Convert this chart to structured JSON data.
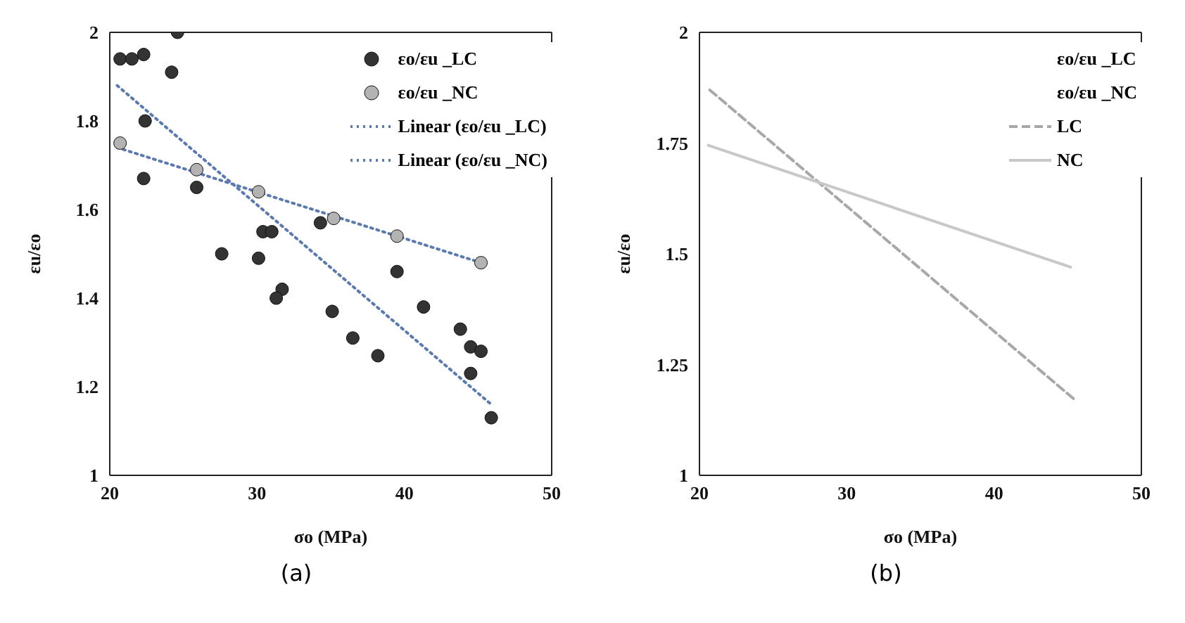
{
  "chart_data": [
    {
      "type": "scatter",
      "xlabel": "σo (MPa)",
      "ylabel": "εu/εo",
      "xlim": [
        20,
        50
      ],
      "xticks": [
        20,
        30,
        40,
        50
      ],
      "ylim": [
        1,
        2
      ],
      "yticks": [
        1,
        1.2,
        1.4,
        1.6,
        1.8,
        2
      ],
      "grid": false,
      "legend": "top right",
      "marker": "circle",
      "annotations": [
        "(a)"
      ],
      "series": [
        {
          "name": "εo/εu _LC",
          "color": "#333333",
          "x": [
            20.7,
            21.5,
            22.3,
            24.6,
            24.2,
            22.4,
            22.3,
            25.9,
            27.6,
            30.1,
            30.4,
            31,
            31.7,
            31.3,
            34.3,
            35.1,
            36.5,
            38.2,
            39.5,
            41.3,
            43.8,
            44.5,
            45.2,
            44.5,
            45.9
          ],
          "values": [
            1.94,
            1.94,
            1.95,
            2,
            1.91,
            1.8,
            1.67,
            1.65,
            1.5,
            1.49,
            1.55,
            1.55,
            1.42,
            1.4,
            1.57,
            1.37,
            1.31,
            1.27,
            1.46,
            1.38,
            1.33,
            1.29,
            1.28,
            1.23,
            1.13
          ]
        },
        {
          "name": "εo/εu _NC",
          "color": "#b3b3b3",
          "x": [
            20.7,
            25.9,
            30.1,
            35.2,
            39.5,
            45.2
          ],
          "values": [
            1.75,
            1.69,
            1.64,
            1.58,
            1.54,
            1.48
          ]
        },
        {
          "name": "Linear (εo/εu _LC)",
          "type": "line",
          "color": "#5a7ab0",
          "line_style": "dotted",
          "marker": "none",
          "x": [
            20.5,
            45.9
          ],
          "values": [
            1.88,
            1.16
          ]
        },
        {
          "name": "Linear (εo/εu _NC)",
          "type": "line",
          "color": "#5a7ab0",
          "line_style": "dotted",
          "marker": "none",
          "x": [
            20.5,
            45.2
          ],
          "values": [
            1.74,
            1.48
          ]
        }
      ]
    },
    {
      "type": "line",
      "xlabel": "σo (MPa)",
      "ylabel": "εu/εo",
      "xlim": [
        20,
        50
      ],
      "xticks": [
        20,
        30,
        40,
        50
      ],
      "ylim": [
        1,
        2
      ],
      "yticks": [
        1,
        1.25,
        1.5,
        1.75,
        2
      ],
      "grid": false,
      "legend": "top right",
      "marker": "none",
      "annotations": [
        "εo/εu _LC",
        "εo/εu _NC",
        "(b)"
      ],
      "series": [
        {
          "name": "LC",
          "color": "#a8a8a8",
          "line_style": "dashed",
          "x": [
            20.7,
            45.5
          ],
          "values": [
            1.87,
            1.17
          ]
        },
        {
          "name": "NC",
          "color": "#c8c8c8",
          "line_style": "solid",
          "x": [
            20.6,
            45.2
          ],
          "values": [
            1.745,
            1.47
          ]
        }
      ]
    }
  ]
}
